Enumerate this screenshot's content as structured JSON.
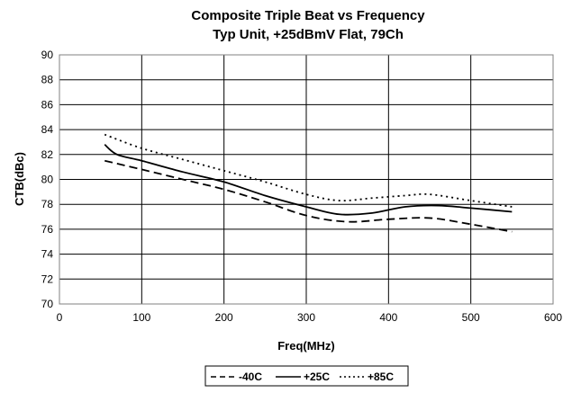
{
  "chart_data": {
    "type": "line",
    "title": "Composite Triple Beat vs Frequency",
    "subtitle": "Typ Unit, +25dBmV Flat, 79Ch",
    "xlabel": "Freq(MHz)",
    "ylabel": "CTB(dBc)",
    "xlim": [
      0,
      600
    ],
    "ylim": [
      70,
      90
    ],
    "xticks": [
      "0",
      "100",
      "200",
      "300",
      "400",
      "500",
      "600"
    ],
    "yticks": [
      "70",
      "72",
      "74",
      "76",
      "78",
      "80",
      "82",
      "84",
      "86",
      "88",
      "90"
    ],
    "grid": true,
    "legend_position": "bottom",
    "series": [
      {
        "name": "-40C",
        "dash": "dashed",
        "color": "#000000",
        "points": [
          [
            55,
            81.5
          ],
          [
            100,
            80.8
          ],
          [
            150,
            80.0
          ],
          [
            200,
            79.2
          ],
          [
            250,
            78.2
          ],
          [
            300,
            77.1
          ],
          [
            350,
            76.6
          ],
          [
            400,
            76.8
          ],
          [
            450,
            76.9
          ],
          [
            500,
            76.4
          ],
          [
            550,
            75.8
          ]
        ]
      },
      {
        "name": "+25C",
        "dash": "solid",
        "color": "#000000",
        "points": [
          [
            55,
            82.8
          ],
          [
            70,
            82.0
          ],
          [
            100,
            81.5
          ],
          [
            150,
            80.6
          ],
          [
            200,
            79.8
          ],
          [
            250,
            78.7
          ],
          [
            300,
            77.8
          ],
          [
            340,
            77.2
          ],
          [
            380,
            77.3
          ],
          [
            420,
            77.8
          ],
          [
            460,
            77.9
          ],
          [
            500,
            77.7
          ],
          [
            550,
            77.4
          ]
        ]
      },
      {
        "name": "+85C",
        "dash": "dotted",
        "color": "#000000",
        "points": [
          [
            55,
            83.6
          ],
          [
            100,
            82.5
          ],
          [
            150,
            81.6
          ],
          [
            200,
            80.7
          ],
          [
            250,
            79.8
          ],
          [
            300,
            78.8
          ],
          [
            340,
            78.3
          ],
          [
            380,
            78.5
          ],
          [
            420,
            78.7
          ],
          [
            450,
            78.8
          ],
          [
            500,
            78.3
          ],
          [
            550,
            77.8
          ]
        ]
      }
    ]
  }
}
